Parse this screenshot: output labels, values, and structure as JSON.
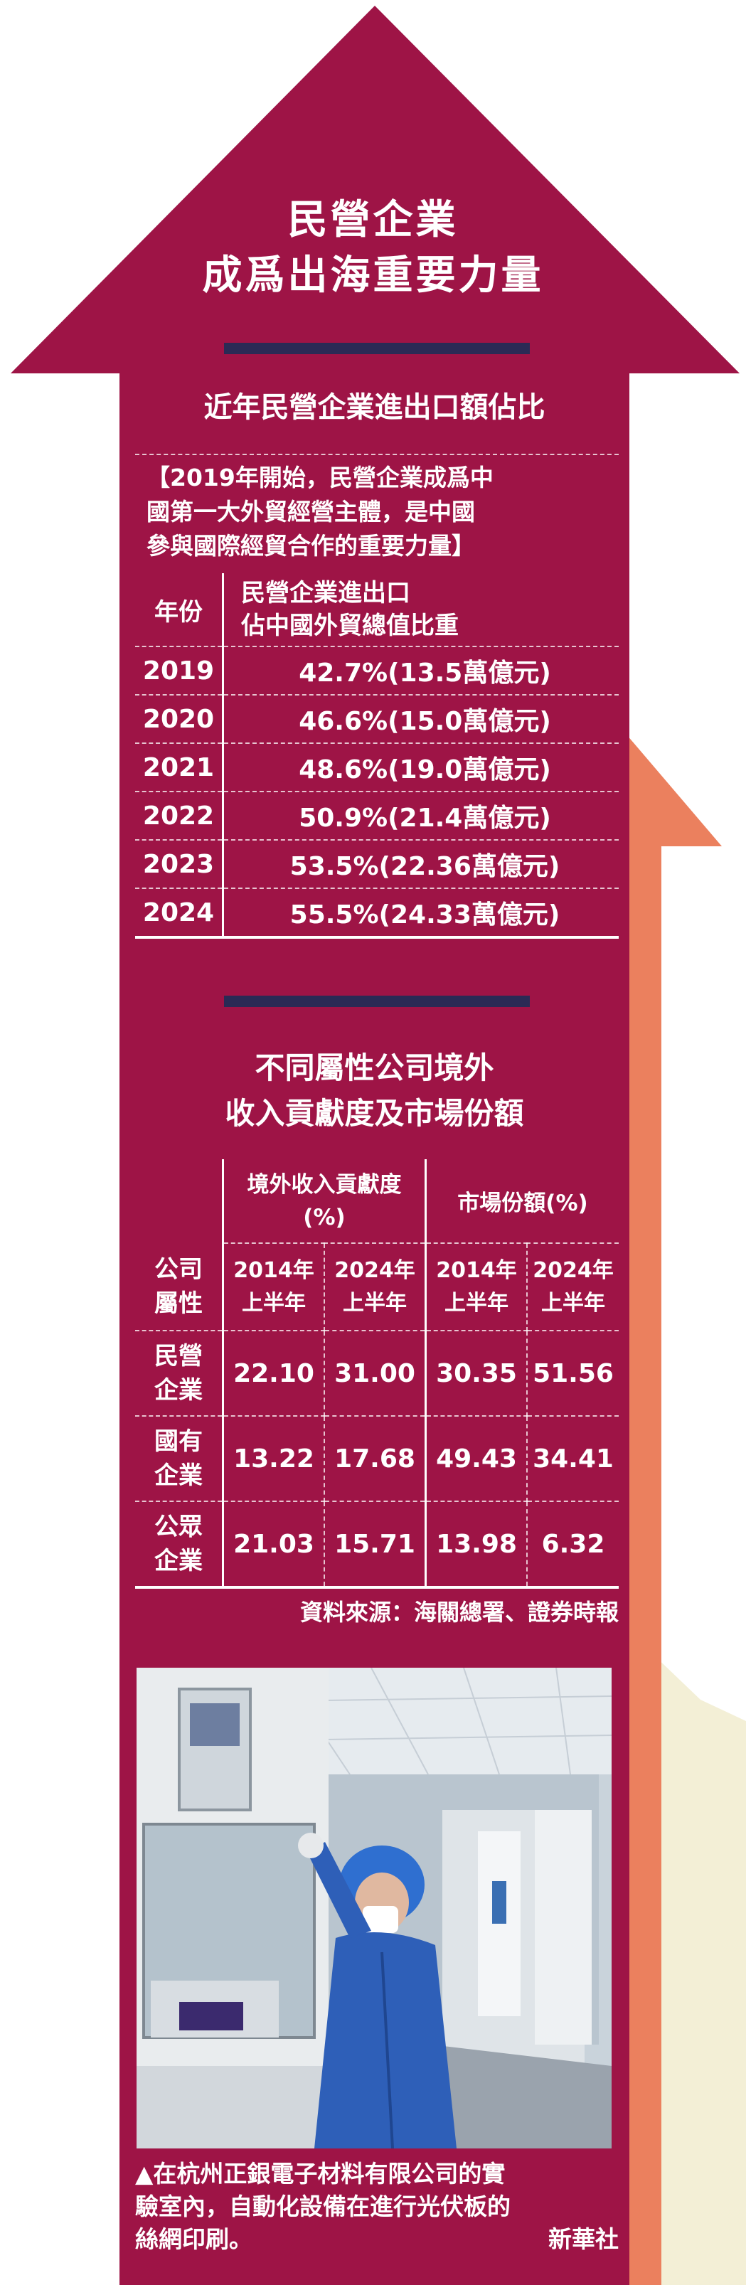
{
  "colors": {
    "maroon": "#9e1446",
    "orange": "#eb805e",
    "cream": "#f3efd6",
    "navy": "#2a2a55",
    "white": "#ffffff"
  },
  "header": {
    "title_line1": "民營企業",
    "title_line2": "成爲出海重要力量"
  },
  "table1": {
    "title": "近年民營企業進出口額佔比",
    "note_line1": "【2019年開始，民營企業成爲中",
    "note_line2": "國第一大外貿經營主體，是中國",
    "note_line3": "參與國際經貿合作的重要力量】",
    "col_year": "年份",
    "col_value_line1": "民營企業進出口",
    "col_value_line2": "佔中國外貿總值比重",
    "rows": [
      {
        "year": "2019",
        "value": "42.7%(13.5萬億元)"
      },
      {
        "year": "2020",
        "value": "46.6%(15.0萬億元)"
      },
      {
        "year": "2021",
        "value": "48.6%(19.0萬億元)"
      },
      {
        "year": "2022",
        "value": "50.9%(21.4萬億元)"
      },
      {
        "year": "2023",
        "value": "53.5%(22.36萬億元)"
      },
      {
        "year": "2024",
        "value": "55.5%(24.33萬億元)"
      }
    ]
  },
  "table2": {
    "title_line1": "不同屬性公司境外",
    "title_line2": "收入貢獻度及市場份額",
    "group1_line1": "境外收入貢獻度",
    "group1_line2": "(%)",
    "group2": "市場份額(%)",
    "row_header_line1": "公司",
    "row_header_line2": "屬性",
    "period_a_line1": "2014年",
    "period_a_line2": "上半年",
    "period_b_line1": "2024年",
    "period_b_line2": "上半年",
    "rows": [
      {
        "type_line1": "民營",
        "type_line2": "企業",
        "v1": "22.10",
        "v2": "31.00",
        "v3": "30.35",
        "v4": "51.56"
      },
      {
        "type_line1": "國有",
        "type_line2": "企業",
        "v1": "13.22",
        "v2": "17.68",
        "v3": "49.43",
        "v4": "34.41"
      },
      {
        "type_line1": "公眾",
        "type_line2": "企業",
        "v1": "21.03",
        "v2": "15.71",
        "v3": "13.98",
        "v4": "6.32"
      }
    ],
    "source": "資料來源：海關總署、證券時報"
  },
  "photo": {
    "caption_line1": "▲在杭州正銀電子材料有限公司的實",
    "caption_line2": "驗室內，自動化設備在進行光伏板的",
    "caption_line3": "絲網印刷。",
    "credit": "新華社"
  }
}
